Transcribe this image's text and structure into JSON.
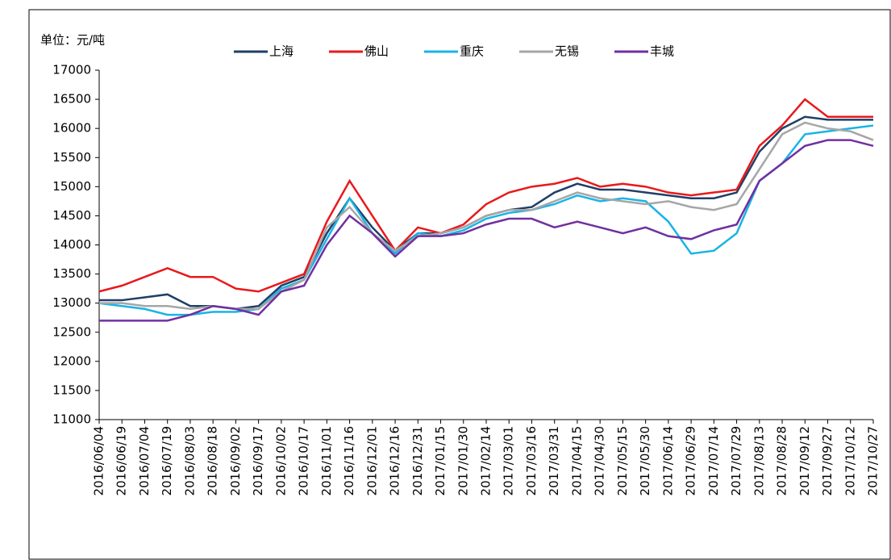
{
  "chart_data": {
    "type": "line",
    "ylabel": "单位：元/吨",
    "categories": [
      "2016/06/04",
      "2016/06/19",
      "2016/07/04",
      "2016/07/19",
      "2016/08/03",
      "2016/08/18",
      "2016/09/02",
      "2016/09/17",
      "2016/10/02",
      "2016/10/17",
      "2016/11/01",
      "2016/11/16",
      "2016/12/01",
      "2016/12/16",
      "2016/12/31",
      "2017/01/15",
      "2017/01/30",
      "2017/02/14",
      "2017/03/01",
      "2017/03/16",
      "2017/03/31",
      "2017/04/15",
      "2017/04/30",
      "2017/05/15",
      "2017/05/30",
      "2017/06/14",
      "2017/06/29",
      "2017/07/14",
      "2017/07/29",
      "2017/08/13",
      "2017/08/28",
      "2017/09/12",
      "2017/09/27",
      "2017/10/12",
      "2017/10/27"
    ],
    "series": [
      {
        "name": "上海",
        "color": "#1f3f66",
        "values": [
          13050,
          13050,
          13100,
          13150,
          12950,
          12950,
          12900,
          12950,
          13300,
          13450,
          14200,
          14800,
          14300,
          13900,
          14200,
          14200,
          14300,
          14500,
          14600,
          14650,
          14900,
          15050,
          14950,
          14950,
          14900,
          14850,
          14800,
          14800,
          14900,
          15600,
          16000,
          16200,
          16150,
          16150,
          16150
        ]
      },
      {
        "name": "佛山",
        "color": "#e8191c",
        "values": [
          13200,
          13300,
          13450,
          13600,
          13450,
          13450,
          13250,
          13200,
          13350,
          13500,
          14400,
          15100,
          14500,
          13900,
          14300,
          14200,
          14350,
          14700,
          14900,
          15000,
          15050,
          15150,
          15000,
          15050,
          15000,
          14900,
          14850,
          14900,
          14950,
          15700,
          16050,
          16500,
          16200,
          16200,
          16200
        ]
      },
      {
        "name": "重庆",
        "color": "#18b4e6",
        "values": [
          13000,
          12950,
          12900,
          12800,
          12800,
          12850,
          12850,
          12900,
          13250,
          13400,
          14100,
          14800,
          14200,
          13850,
          14200,
          14150,
          14250,
          14450,
          14550,
          14600,
          14700,
          14850,
          14750,
          14800,
          14750,
          14400,
          13850,
          13900,
          14200,
          15100,
          15400,
          15900,
          15950,
          16000,
          16050
        ]
      },
      {
        "name": "无锡",
        "color": "#a6a6a6",
        "values": [
          13000,
          13000,
          12950,
          12950,
          12900,
          12950,
          12900,
          12900,
          13200,
          13400,
          14300,
          14650,
          14200,
          13900,
          14150,
          14200,
          14300,
          14500,
          14600,
          14600,
          14750,
          14900,
          14800,
          14750,
          14700,
          14750,
          14650,
          14600,
          14700,
          15300,
          15900,
          16100,
          16000,
          15950,
          15800
        ]
      },
      {
        "name": "丰城",
        "color": "#7030a0",
        "values": [
          12700,
          12700,
          12700,
          12700,
          12800,
          12950,
          12900,
          12800,
          13200,
          13300,
          14000,
          14500,
          14200,
          13800,
          14150,
          14150,
          14200,
          14350,
          14450,
          14450,
          14300,
          14400,
          14300,
          14200,
          14300,
          14150,
          14100,
          14250,
          14350,
          15100,
          15400,
          15700,
          15800,
          15800,
          15700
        ]
      }
    ],
    "ylim": [
      11000,
      17000
    ],
    "yticks": [
      11000,
      11500,
      12000,
      12500,
      13000,
      13500,
      14000,
      14500,
      15000,
      15500,
      16000,
      16500,
      17000
    ]
  }
}
